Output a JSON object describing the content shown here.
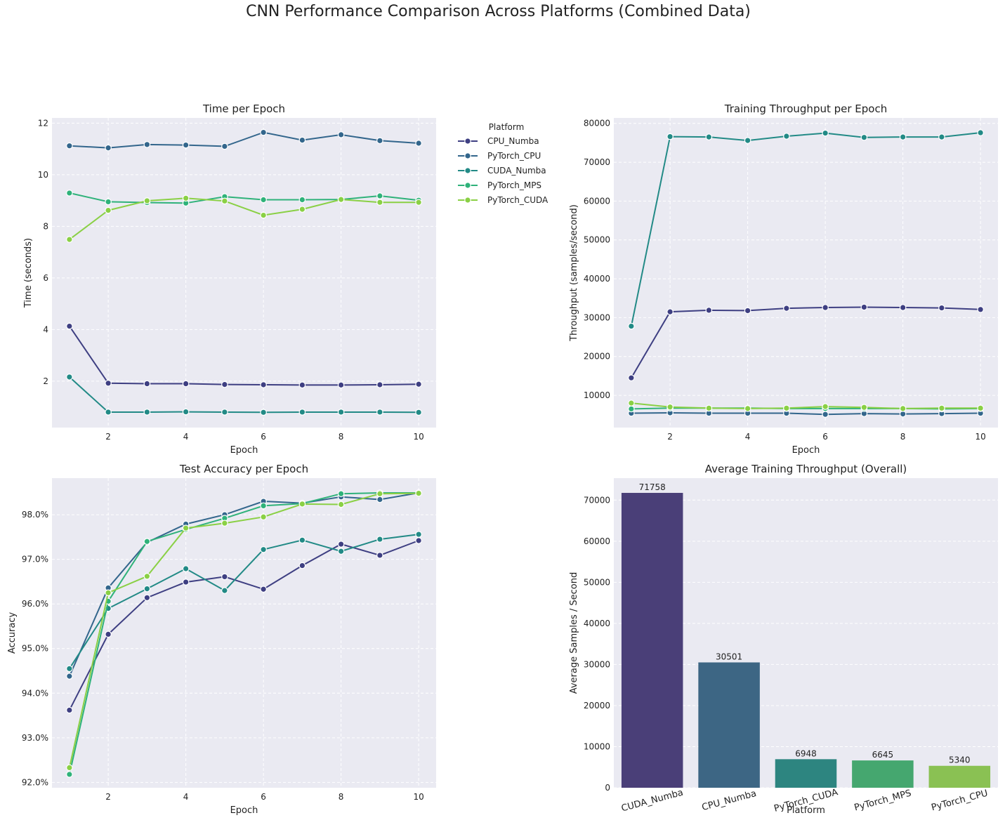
{
  "figure": {
    "title": "CNN Performance Comparison Across Platforms (Combined Data)"
  },
  "colors": {
    "CPU_Numba": "#3e3f82",
    "PyTorch_CPU": "#33668c",
    "CUDA_Numba": "#228a86",
    "PyTorch_MPS": "#2fb27a",
    "PyTorch_CUDA": "#8ad045",
    "plot_bg": "#eaeaf2",
    "grid": "#ffffff"
  },
  "legend": {
    "title": "Platform",
    "entries": [
      "CPU_Numba",
      "PyTorch_CPU",
      "CUDA_Numba",
      "PyTorch_MPS",
      "PyTorch_CUDA"
    ]
  },
  "chart_data": [
    {
      "id": "time",
      "type": "line",
      "title": "Time per Epoch",
      "xlabel": "Epoch",
      "ylabel": "Time (seconds)",
      "xlim": [
        0.55,
        10.45
      ],
      "ylim": [
        0.2,
        12.2
      ],
      "xticks": [
        2,
        4,
        6,
        8,
        10
      ],
      "yticks": [
        2,
        4,
        6,
        8,
        10,
        12
      ],
      "x": [
        1,
        2,
        3,
        4,
        5,
        6,
        7,
        8,
        9,
        10
      ],
      "series": [
        {
          "name": "CPU_Numba",
          "values": [
            4.13,
            1.92,
            1.9,
            1.9,
            1.87,
            1.86,
            1.85,
            1.85,
            1.86,
            1.88
          ]
        },
        {
          "name": "PyTorch_CPU",
          "values": [
            11.12,
            11.04,
            11.17,
            11.15,
            11.1,
            11.64,
            11.34,
            11.55,
            11.32,
            11.22
          ]
        },
        {
          "name": "CUDA_Numba",
          "values": [
            2.16,
            0.8,
            0.8,
            0.81,
            0.8,
            0.79,
            0.8,
            0.8,
            0.8,
            0.79
          ]
        },
        {
          "name": "PyTorch_MPS",
          "values": [
            9.29,
            8.95,
            8.92,
            8.9,
            9.15,
            9.03,
            9.03,
            9.04,
            9.18,
            9.01
          ]
        },
        {
          "name": "PyTorch_CUDA",
          "values": [
            7.49,
            8.62,
            8.99,
            9.09,
            8.98,
            8.43,
            8.66,
            9.04,
            8.93,
            8.93
          ]
        }
      ]
    },
    {
      "id": "throughput",
      "type": "line",
      "title": "Training Throughput per Epoch",
      "xlabel": "Epoch",
      "ylabel": "Throughput (samples/second)",
      "xlim": [
        0.55,
        10.45
      ],
      "ylim": [
        1700,
        81400
      ],
      "xticks": [
        2,
        4,
        6,
        8,
        10
      ],
      "yticks": [
        10000,
        20000,
        30000,
        40000,
        50000,
        60000,
        70000,
        80000
      ],
      "x": [
        1,
        2,
        3,
        4,
        5,
        6,
        7,
        8,
        9,
        10
      ],
      "series": [
        {
          "name": "CPU_Numba",
          "values": [
            14500,
            31500,
            31900,
            31800,
            32400,
            32600,
            32700,
            32600,
            32500,
            32100
          ]
        },
        {
          "name": "PyTorch_CPU",
          "values": [
            5400,
            5500,
            5400,
            5400,
            5400,
            5100,
            5300,
            5200,
            5300,
            5400
          ]
        },
        {
          "name": "CUDA_Numba",
          "values": [
            27800,
            76600,
            76500,
            75600,
            76700,
            77500,
            76400,
            76500,
            76500,
            77600
          ]
        },
        {
          "name": "PyTorch_MPS",
          "values": [
            6500,
            6700,
            6700,
            6700,
            6600,
            6600,
            6600,
            6600,
            6500,
            6600
          ]
        },
        {
          "name": "PyTorch_CUDA",
          "values": [
            8000,
            7000,
            6700,
            6600,
            6700,
            7100,
            6900,
            6600,
            6700,
            6700
          ]
        }
      ]
    },
    {
      "id": "accuracy",
      "type": "line",
      "title": "Test Accuracy per Epoch",
      "xlabel": "Epoch",
      "ylabel": "Accuracy",
      "xlim": [
        0.55,
        10.45
      ],
      "ylim": [
        0.9188,
        0.9882
      ],
      "xticks": [
        2,
        4,
        6,
        8,
        10
      ],
      "yticks": [
        0.92,
        0.93,
        0.94,
        0.95,
        0.96,
        0.97,
        0.98
      ],
      "ytick_labels": [
        "92.0%",
        "93.0%",
        "94.0%",
        "95.0%",
        "96.0%",
        "97.0%",
        "98.0%"
      ],
      "x": [
        1,
        2,
        3,
        4,
        5,
        6,
        7,
        8,
        9,
        10
      ],
      "series": [
        {
          "name": "CPU_Numba",
          "values": [
            0.9362,
            0.9532,
            0.9614,
            0.9649,
            0.9661,
            0.9633,
            0.9686,
            0.9734,
            0.9709,
            0.9742
          ]
        },
        {
          "name": "PyTorch_CPU",
          "values": [
            0.9438,
            0.9636,
            0.9738,
            0.9779,
            0.98,
            0.983,
            0.9826,
            0.984,
            0.9834,
            0.9849
          ]
        },
        {
          "name": "CUDA_Numba",
          "values": [
            0.9455,
            0.959,
            0.9634,
            0.9679,
            0.963,
            0.9722,
            0.9743,
            0.9718,
            0.9745,
            0.9756
          ]
        },
        {
          "name": "PyTorch_MPS",
          "values": [
            0.9218,
            0.9606,
            0.974,
            0.9767,
            0.9792,
            0.982,
            0.9825,
            0.9847,
            0.9849,
            0.9849
          ]
        },
        {
          "name": "PyTorch_CUDA",
          "values": [
            0.9233,
            0.9625,
            0.9662,
            0.977,
            0.9781,
            0.9795,
            0.9824,
            0.9823,
            0.9847,
            0.9848
          ]
        }
      ]
    },
    {
      "id": "average",
      "type": "bar",
      "title": "Average Training Throughput (Overall)",
      "xlabel": "Platform",
      "ylabel": "Average Samples / Second",
      "ylim": [
        0,
        75350
      ],
      "yticks": [
        0,
        10000,
        20000,
        30000,
        40000,
        50000,
        60000,
        70000
      ],
      "categories": [
        "CUDA_Numba",
        "CPU_Numba",
        "PyTorch_CUDA",
        "PyTorch_MPS",
        "PyTorch_CPU"
      ],
      "values": [
        71758,
        30501,
        6948,
        6645,
        5340
      ],
      "value_labels": [
        "71758",
        "30501",
        "6948",
        "6645",
        "5340"
      ],
      "bar_colors": [
        "#4a3f78",
        "#3d6684",
        "#2d8580",
        "#45a76f",
        "#8ac153"
      ]
    }
  ]
}
